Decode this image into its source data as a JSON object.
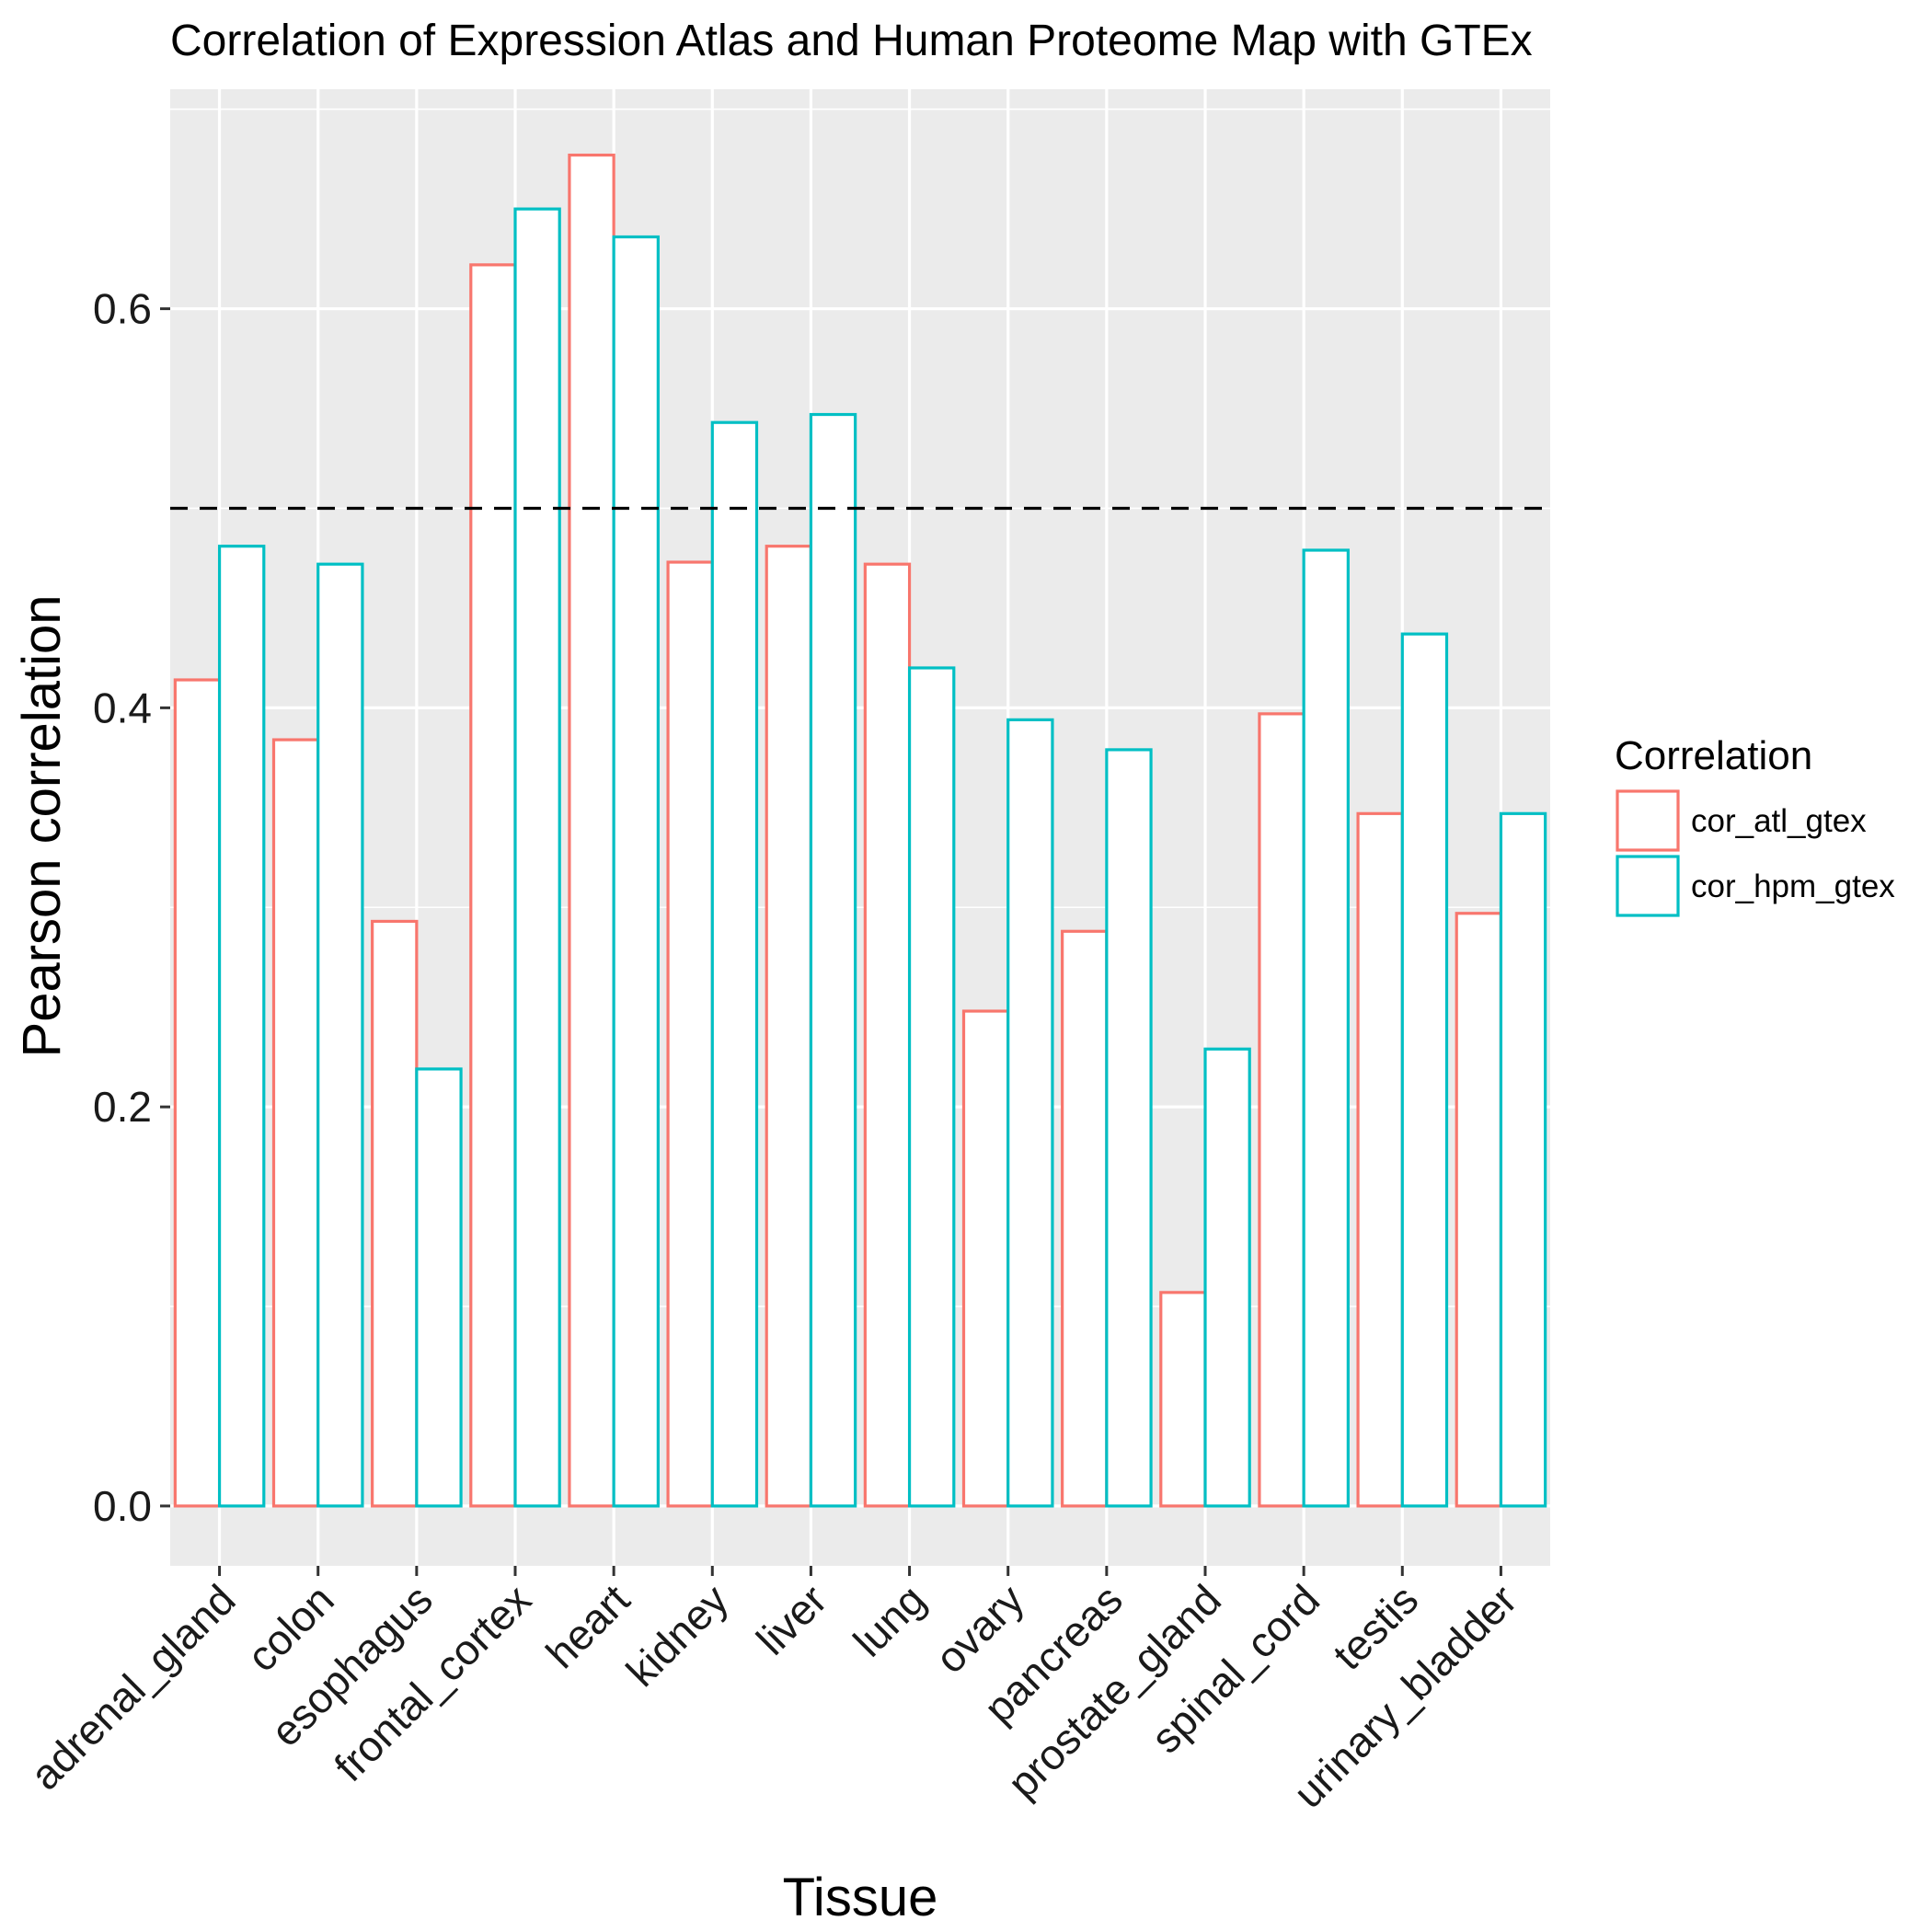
{
  "chart_data": {
    "type": "bar",
    "title": "Correlation of Expression Atlas and Human Proteome Map with GTEx",
    "xlabel": "Tissue",
    "ylabel": "Pearson correlation",
    "ylim": [
      -0.03,
      0.71
    ],
    "yticks": [
      0.0,
      0.2,
      0.4,
      0.6
    ],
    "ytick_labels": [
      "0.0",
      "0.2",
      "0.4",
      "0.6"
    ],
    "grid": true,
    "reference_line": 0.5,
    "categories": [
      "adrenal_gland",
      "colon",
      "esophagus",
      "frontal_cortex",
      "heart",
      "kidney",
      "liver",
      "lung",
      "ovary",
      "pancreas",
      "prostate_gland",
      "spinal_cord",
      "testis",
      "urinary_bladder"
    ],
    "series": [
      {
        "name": "cor_atl_gtex",
        "color": "#F8766D",
        "values": [
          0.414,
          0.384,
          0.293,
          0.622,
          0.677,
          0.473,
          0.481,
          0.472,
          0.248,
          0.288,
          0.107,
          0.397,
          0.347,
          0.297
        ]
      },
      {
        "name": "cor_hpm_gtex",
        "color": "#00BFC4",
        "values": [
          0.481,
          0.472,
          0.219,
          0.65,
          0.636,
          0.543,
          0.547,
          0.42,
          0.394,
          0.379,
          0.229,
          0.479,
          0.437,
          0.347
        ]
      }
    ],
    "legend": {
      "title": "Correlation",
      "position": "right"
    }
  }
}
